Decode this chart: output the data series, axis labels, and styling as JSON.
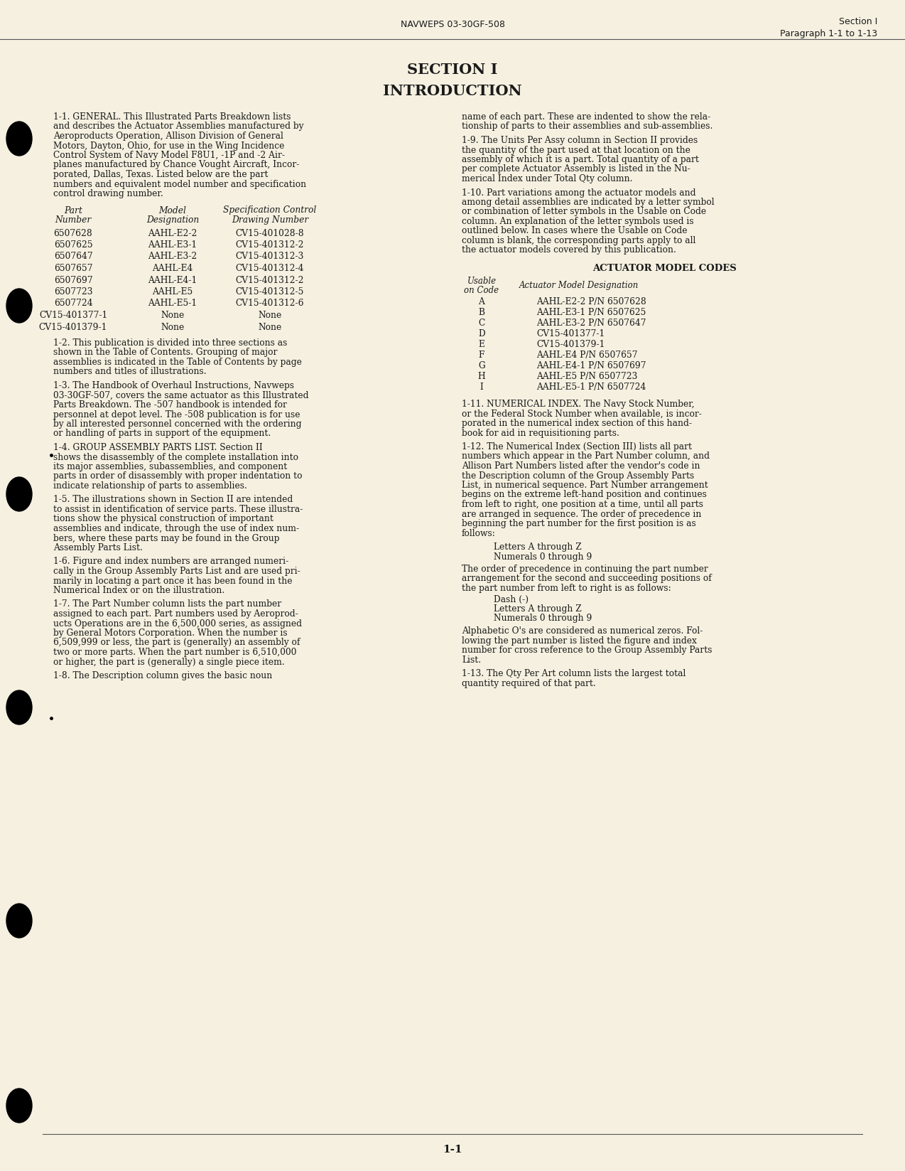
{
  "bg_color": "#f5f0e0",
  "text_color": "#1a1a1a",
  "header_center": "NAVWEPS 03-30GF-508",
  "header_right_line1": "Section I",
  "header_right_line2": "Paragraph 1-1 to 1-13",
  "section_title": "SECTION I",
  "intro_title": "INTRODUCTION",
  "footer_text": "1-1",
  "table_rows": [
    [
      "6507628",
      "AAHL-E2-2",
      "CV15-401028-8"
    ],
    [
      "6507625",
      "AAHL-E3-1",
      "CV15-401312-2"
    ],
    [
      "6507647",
      "AAHL-E3-2",
      "CV15-401312-3"
    ],
    [
      "6507657",
      "AAHL-E4",
      "CV15-401312-4"
    ],
    [
      "6507697",
      "AAHL-E4-1",
      "CV15-401312-2"
    ],
    [
      "6507723",
      "AAHL-E5",
      "CV15-401312-5"
    ],
    [
      "6507724",
      "AAHL-E5-1",
      "CV15-401312-6"
    ],
    [
      "CV15-401377-1",
      "None",
      "None"
    ],
    [
      "CV15-401379-1",
      "None",
      "None"
    ]
  ],
  "actuator_title": "ACTUATOR MODEL CODES",
  "actuator_rows": [
    [
      "A",
      "AAHL-E2-2 P/N 6507628"
    ],
    [
      "B",
      "AAHL-E3-1 P/N 6507625"
    ],
    [
      "C",
      "AAHL-E3-2 P/N 6507647"
    ],
    [
      "D",
      "CV15-401377-1"
    ],
    [
      "E",
      "CV15-401379-1"
    ],
    [
      "F",
      "AAHL-E4 P/N 6507657"
    ],
    [
      "G",
      "AAHL-E4-1 P/N 6507697"
    ],
    [
      "H",
      "AAHL-E5 P/N 6507723"
    ],
    [
      "I",
      "AAHL-E5-1 P/N 6507724"
    ]
  ],
  "left_paras": [
    "1-1. GENERAL. This Illustrated Parts Breakdown lists\nand describes the Actuator Assemblies manufactured by\nAeroproducts Operation, Allison Division of General\nMotors, Dayton, Ohio, for use in the Wing Incidence\nControl System of Navy Model F8U1, -1P and -2 Air-\nplanes manufactured by Chance Vought Aircraft, Incor-\nporated, Dallas, Texas. Listed below are the part\nnumbers and equivalent model number and specification\ncontrol drawing number.",
    "1-2. This publication is divided into three sections as\nshown in the Table of Contents. Grouping of major\nassemblies is indicated in the Table of Contents by page\nnumbers and titles of illustrations.",
    "1-3. The Handbook of Overhaul Instructions, Navweps\n03-30GF-507, covers the same actuator as this Illustrated\nParts Breakdown. The -507 handbook is intended for\npersonnel at depot level. The -508 publication is for use\nby all interested personnel concerned with the ordering\nor handling of parts in support of the equipment.",
    "1-4. GROUP ASSEMBLY PARTS LIST. Section II\nshows the disassembly of the complete installation into\nits major assemblies, subassemblies, and component\nparts in order of disassembly with proper indentation to\nindicate relationship of parts to assemblies.",
    "1-5. The illustrations shown in Section II are intended\nto assist in identification of service parts. These illustra-\ntions show the physical construction of important\nassemblies and indicate, through the use of index num-\nbers, where these parts may be found in the Group\nAssembly Parts List.",
    "1-6. Figure and index numbers are arranged numeri-\ncally in the Group Assembly Parts List and are used pri-\nmarily in locating a part once it has been found in the\nNumerical Index or on the illustration.",
    "1-7. The Part Number column lists the part number\nassigned to each part. Part numbers used by Aeroprod-\nucts Operations are in the 6,500,000 series, as assigned\nby General Motors Corporation. When the number is\n6,509,999 or less, the part is (generally) an assembly of\ntwo or more parts. When the part number is 6,510,000\nor higher, the part is (generally) a single piece item.",
    "1-8. The Description column gives the basic noun"
  ],
  "right_paras_top": [
    "name of each part. These are indented to show the rela-\ntionship of parts to their assemblies and sub-assemblies.",
    "1-9. The Units Per Assy column in Section II provides\nthe quantity of the part used at that location on the\nassembly of which it is a part. Total quantity of a part\nper complete Actuator Assembly is listed in the Nu-\nmerical Index under Total Qty column.",
    "1-10. Part variations among the actuator models and\namong detail assemblies are indicated by a letter symbol\nor combination of letter symbols in the Usable on Code\ncolumn. An explanation of the letter symbols used is\noutlined below. In cases where the Usable on Code\ncolumn is blank, the corresponding parts apply to all\nthe actuator models covered by this publication."
  ],
  "right_paras_bottom": [
    "1-11. NUMERICAL INDEX. The Navy Stock Number,\nor the Federal Stock Number when available, is incor-\nporated in the numerical index section of this hand-\nbook for aid in requisitioning parts.",
    "1-12. The Numerical Index (Section III) lists all part\nnumbers which appear in the Part Number column, and\nAllison Part Numbers listed after the vendor's code in\nthe Description column of the Group Assembly Parts\nList, in numerical sequence. Part Number arrangement\nbegins on the extreme left-hand position and continues\nfrom left to right, one position at a time, until all parts\nare arranged in sequence. The order of precedence in\nbeginning the part number for the first position is as\nfollows:"
  ],
  "list_items_1": [
    "Letters A through Z",
    "Numerals 0 through 9"
  ],
  "list_continuation": "The order of precedence in continuing the part number\narrangement for the second and succeeding positions of\nthe part number from left to right is as follows:",
  "list_items_2": [
    "Dash (-)",
    "Letters A through Z",
    "Numerals 0 through 9"
  ],
  "list_continuation2": "Alphabetic O's are considered as numerical zeros. Fol-\nlowing the part number is listed the figure and index\nnumber for cross reference to the Group Assembly Parts\nList.",
  "para_113": "1-13. The Qty Per Art column lists the largest total\nquantity required of that part."
}
